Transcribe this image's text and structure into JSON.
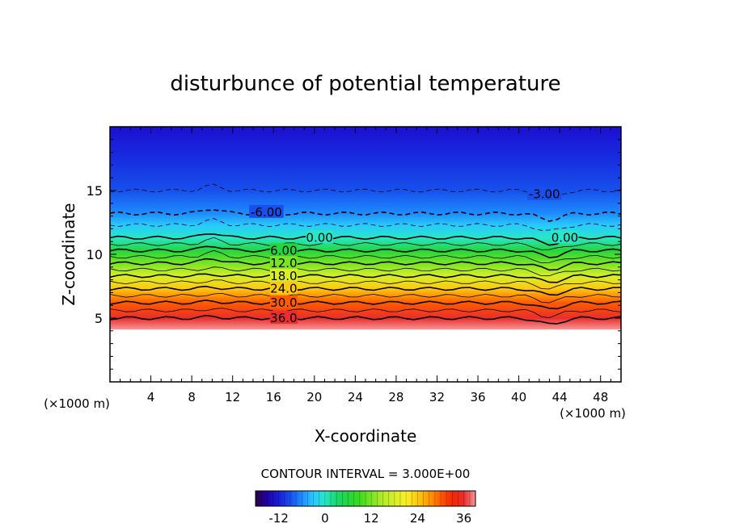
{
  "chart_data": {
    "type": "heatmap",
    "title": "disturbunce of potential temperature",
    "xlabel": "X-coordinate",
    "ylabel": "Z-coordinate",
    "x_unit_left": "(×1000 m)",
    "x_unit_right": "(×1000 m)",
    "xlim": [
      0,
      50
    ],
    "ylim": [
      0,
      20
    ],
    "xticks": [
      4,
      8,
      12,
      16,
      20,
      24,
      28,
      32,
      36,
      40,
      44,
      48
    ],
    "yticks": [
      5,
      10,
      15
    ],
    "contour_interval_text": "CONTOUR INTERVAL = 3.000E+00",
    "contour_labels": [
      {
        "text": "-6.00",
        "x": 15.3,
        "z": 13.3
      },
      {
        "text": "-3.00",
        "x": 42.5,
        "z": 14.7
      },
      {
        "text": "0.00",
        "x": 20.5,
        "z": 11.3
      },
      {
        "text": "0.00",
        "x": 44.5,
        "z": 11.3
      },
      {
        "text": "6.00",
        "x": 17.0,
        "z": 10.3
      },
      {
        "text": "12.0",
        "x": 17.0,
        "z": 9.3
      },
      {
        "text": "18.0",
        "x": 17.0,
        "z": 8.3
      },
      {
        "text": "24.0",
        "x": 17.0,
        "z": 7.3
      },
      {
        "text": "30.0",
        "x": 17.0,
        "z": 6.2
      },
      {
        "text": "36.0",
        "x": 17.0,
        "z": 5.0
      }
    ],
    "contour_levels": [
      36,
      33,
      30,
      27,
      24,
      21,
      18,
      15,
      12,
      9,
      6,
      3,
      0,
      -3,
      -6,
      -9
    ],
    "profile": [
      {
        "z": 4.1,
        "value": 39
      },
      {
        "z": 5.0,
        "value": 36
      },
      {
        "z": 6.2,
        "value": 30
      },
      {
        "z": 7.3,
        "value": 24
      },
      {
        "z": 8.3,
        "value": 18
      },
      {
        "z": 9.3,
        "value": 12
      },
      {
        "z": 10.3,
        "value": 6
      },
      {
        "z": 11.3,
        "value": 0
      },
      {
        "z": 12.3,
        "value": -3
      },
      {
        "z": 13.2,
        "value": -6
      },
      {
        "z": 15.0,
        "value": -9
      },
      {
        "z": 17.5,
        "value": -11
      },
      {
        "z": 20.0,
        "value": -13
      }
    ],
    "colorbar": {
      "min": -18,
      "max": 39,
      "ticks": [
        -12,
        0,
        12,
        24,
        36
      ]
    }
  }
}
